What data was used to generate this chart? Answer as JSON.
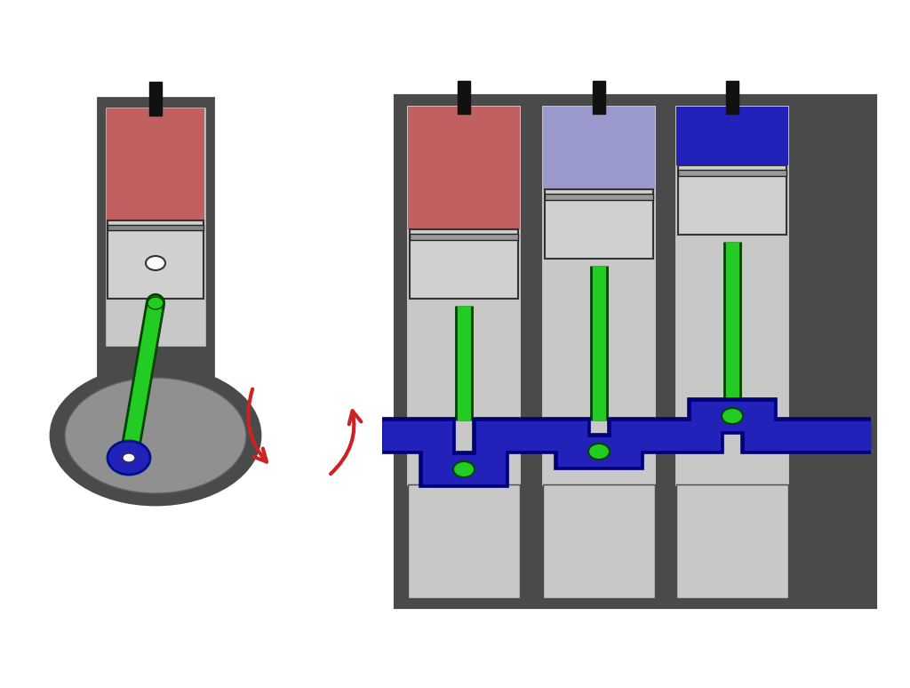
{
  "bg_color": "#ffffff",
  "dark_gray": "#4a4a4a",
  "medium_gray": "#808080",
  "light_gray": "#b0b0b0",
  "lighter_gray": "#c8c8c8",
  "piston_color": "#d0d0d0",
  "red_fill": "#c06060",
  "blue_fill": "#2222bb",
  "light_blue_fill": "#9999cc",
  "green_rod": "#22cc22",
  "blue_crank": "#2222bb",
  "red_arrow": "#cc2222",
  "black": "#111111",
  "white": "#ffffff",
  "crank_circle_bg": "#909090"
}
